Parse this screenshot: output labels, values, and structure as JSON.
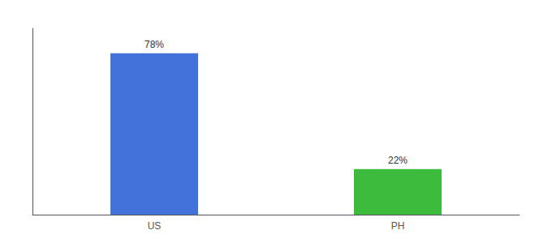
{
  "chart_data": {
    "type": "bar",
    "categories": [
      "US",
      "PH"
    ],
    "values": [
      78,
      22
    ],
    "value_labels": [
      "78%",
      "22%"
    ],
    "colors": [
      "#4472db",
      "#3dbb3d"
    ],
    "ylim": [
      0,
      90
    ],
    "data_labels": true,
    "tick_labels": "x",
    "grid": false
  }
}
